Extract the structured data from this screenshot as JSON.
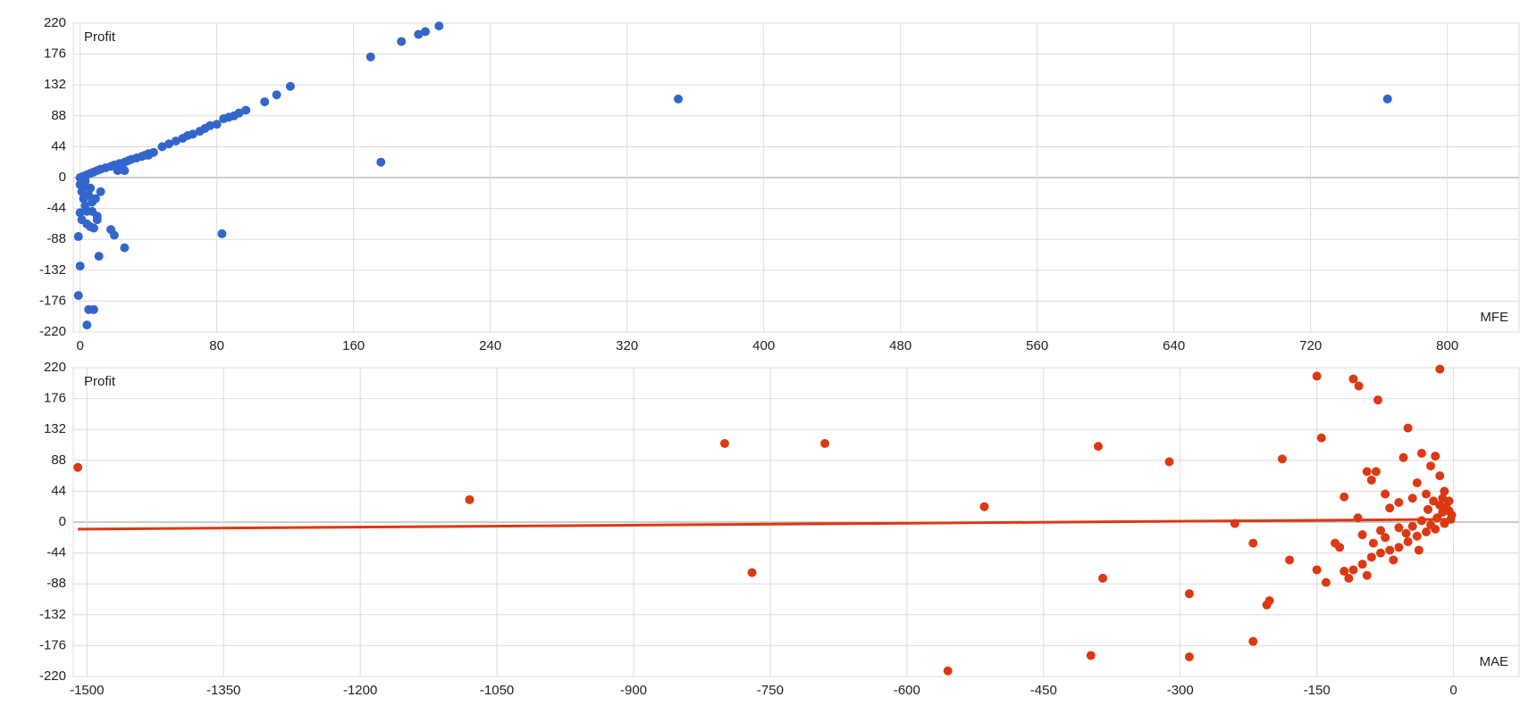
{
  "chart_data": [
    {
      "type": "scatter",
      "y_label": "Profit",
      "x_label": "MFE",
      "color": "#3366cc",
      "xlim": [
        -4,
        842
      ],
      "xticks": [
        0,
        80,
        160,
        240,
        320,
        400,
        480,
        560,
        640,
        720,
        800
      ],
      "ylim": [
        -220,
        220
      ],
      "yticks": [
        -220,
        -176,
        -132,
        -88,
        -44,
        0,
        44,
        88,
        132,
        176,
        220
      ],
      "grid": true,
      "x": [
        0,
        2,
        4,
        6,
        8,
        10,
        12,
        15,
        18,
        20,
        23,
        26,
        28,
        30,
        33,
        36,
        38,
        40,
        43,
        48,
        52,
        56,
        60,
        63,
        66,
        70,
        73,
        76,
        80,
        84,
        87,
        90,
        93,
        97,
        108,
        115,
        123,
        170,
        188,
        198,
        202,
        210,
        350,
        765,
        176,
        22,
        26,
        40,
        83,
        18,
        20,
        26,
        11,
        -1,
        0,
        -1,
        5,
        8,
        4,
        0,
        1,
        2,
        3,
        0,
        1,
        4,
        6,
        8,
        10,
        12,
        2,
        5,
        7,
        3,
        6,
        9,
        4,
        1,
        10,
        7
      ],
      "values": [
        0,
        2,
        4,
        6,
        8,
        10,
        12,
        14,
        16,
        18,
        20,
        22,
        24,
        26,
        28,
        30,
        32,
        34,
        36,
        44,
        48,
        52,
        56,
        60,
        62,
        66,
        70,
        74,
        76,
        84,
        86,
        88,
        92,
        96,
        108,
        118,
        130,
        172,
        194,
        204,
        208,
        216,
        112,
        112,
        22,
        10,
        10,
        32,
        -80,
        -74,
        -82,
        -100,
        -112,
        -84,
        -126,
        -168,
        -188,
        -188,
        -210,
        -10,
        -20,
        -30,
        -40,
        -50,
        -60,
        -66,
        -70,
        -72,
        -55,
        -20,
        -14,
        -25,
        -35,
        -5,
        -15,
        -30,
        -48,
        -8,
        -60,
        -48
      ]
    },
    {
      "type": "scatter",
      "y_label": "Profit",
      "x_label": "MAE",
      "color": "#dc3912",
      "xlim": [
        -1515,
        72
      ],
      "xticks": [
        -1500,
        -1350,
        -1200,
        -1050,
        -900,
        -750,
        -600,
        -450,
        -300,
        -150,
        0
      ],
      "ylim": [
        -220,
        220
      ],
      "yticks": [
        -220,
        -176,
        -132,
        -88,
        -44,
        0,
        44,
        88,
        132,
        176,
        220
      ],
      "grid": true,
      "x": [
        -1510,
        -1080,
        -800,
        -690,
        -770,
        -515,
        -555,
        -390,
        -385,
        -398,
        -312,
        -290,
        -290,
        -240,
        -220,
        -220,
        -205,
        -202,
        -188,
        -180,
        -150,
        -145,
        -150,
        -140,
        -110,
        -104,
        -83,
        -50,
        -15,
        -120,
        -95,
        -85,
        -90,
        -75,
        -55,
        -35,
        -20,
        -25,
        -15,
        -40,
        -10,
        -30,
        -5,
        -8,
        -12,
        -2,
        -18,
        -25,
        -30,
        -40,
        -50,
        -60,
        -70,
        -80,
        -90,
        -100,
        -110,
        -115,
        -125,
        -130,
        -100,
        -80,
        -60,
        -45,
        -35,
        -20,
        -10,
        -3,
        -5,
        -15,
        -22,
        -28,
        -12,
        -45,
        -60,
        -70,
        -105,
        -88,
        -75,
        -66,
        -95,
        -120,
        -52,
        -38
      ],
      "values": [
        78,
        32,
        112,
        112,
        -72,
        22,
        -212,
        108,
        -80,
        -190,
        86,
        -102,
        -192,
        -2,
        -30,
        -170,
        -118,
        -112,
        90,
        -54,
        208,
        120,
        -68,
        -86,
        204,
        194,
        174,
        134,
        218,
        36,
        72,
        72,
        60,
        40,
        92,
        98,
        94,
        80,
        66,
        56,
        44,
        40,
        30,
        22,
        14,
        10,
        6,
        -4,
        -14,
        -20,
        -28,
        -36,
        -40,
        -44,
        -50,
        -60,
        -68,
        -80,
        -36,
        -30,
        -18,
        -12,
        -8,
        -6,
        2,
        -10,
        -2,
        4,
        16,
        24,
        30,
        18,
        34,
        34,
        28,
        20,
        6,
        -30,
        -22,
        -54,
        -76,
        -70,
        -16,
        -40
      ],
      "trendline": {
        "x": [
          -1510,
          0
        ],
        "values": [
          -10,
          4
        ]
      }
    }
  ]
}
